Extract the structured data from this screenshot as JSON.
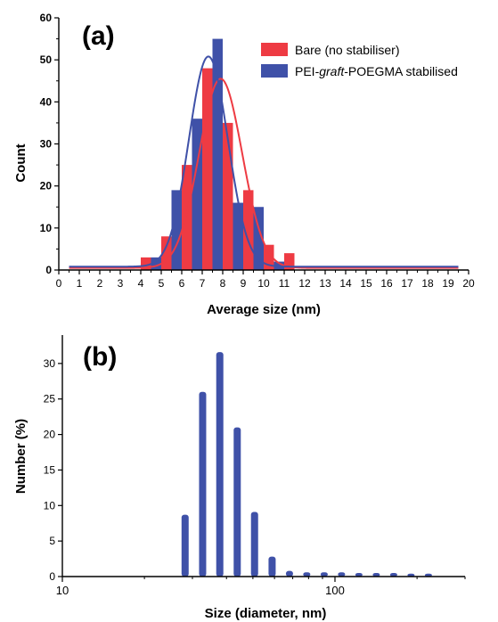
{
  "colors": {
    "red": "#ee3b43",
    "blue": "#3f51a8",
    "axis": "#000000"
  },
  "chart_data": [
    {
      "panel_label": "(a)",
      "type": "bar",
      "xlabel": "Average size (nm)",
      "ylabel": "Count",
      "xlim": [
        0,
        20
      ],
      "ylim": [
        0,
        60
      ],
      "x_ticks": [
        "0",
        "1",
        "2",
        "3",
        "4",
        "5",
        "6",
        "7",
        "8",
        "9",
        "10",
        "11",
        "12",
        "13",
        "14",
        "15",
        "16",
        "17",
        "18",
        "19",
        "20"
      ],
      "y_ticks": [
        "0",
        "10",
        "20",
        "30",
        "40",
        "50",
        "60"
      ],
      "legend_position": "top-right",
      "series": [
        {
          "name": "Bare (no stabiliser)",
          "color": "#ee3b43",
          "bin_width": 0.5,
          "bins": [
            [
              4.25,
              3
            ],
            [
              5.25,
              8
            ],
            [
              6.25,
              25
            ],
            [
              7.25,
              48
            ],
            [
              8.25,
              35
            ],
            [
              9.25,
              19
            ],
            [
              10.25,
              6
            ],
            [
              11.25,
              4
            ]
          ],
          "fit": {
            "type": "gaussian",
            "center": 7.9,
            "amplitude": 45,
            "sigma": 1.05,
            "baseline": 0.5
          }
        },
        {
          "name": "PEI-graft-POEGMA stabilised",
          "name_parts": [
            "PEI-",
            "graft",
            "-POEGMA stabilised"
          ],
          "color": "#3f51a8",
          "bin_width": 0.5,
          "bins": [
            [
              4.75,
              3
            ],
            [
              5.75,
              19
            ],
            [
              6.75,
              36
            ],
            [
              7.75,
              55
            ],
            [
              8.75,
              16
            ],
            [
              9.75,
              15
            ],
            [
              10.75,
              2
            ]
          ],
          "fit": {
            "type": "gaussian",
            "center": 7.3,
            "amplitude": 50,
            "sigma": 0.95,
            "baseline": 0.8
          }
        }
      ]
    },
    {
      "panel_label": "(b)",
      "type": "bar",
      "x_scale": "log",
      "xlabel": "Size (diameter, nm)",
      "ylabel": "Number (%)",
      "xlim": [
        10,
        300
      ],
      "ylim": [
        0,
        34
      ],
      "x_ticks": [
        "10",
        "100"
      ],
      "y_ticks": [
        "0",
        "5",
        "10",
        "15",
        "20",
        "25",
        "30"
      ],
      "series": [
        {
          "color": "#3f51a8",
          "x": [
            28.2,
            32.7,
            37.8,
            43.8,
            50.7,
            58.8,
            68.1,
            78.8,
            91.3,
            105.7,
            122.4,
            141.8,
            164.2,
            190.1,
            220.2
          ],
          "values": [
            8.7,
            26.0,
            31.6,
            21.0,
            9.1,
            2.8,
            0.8,
            0.6,
            0.6,
            0.6,
            0.5,
            0.5,
            0.5,
            0.4,
            0.4
          ]
        }
      ]
    }
  ]
}
